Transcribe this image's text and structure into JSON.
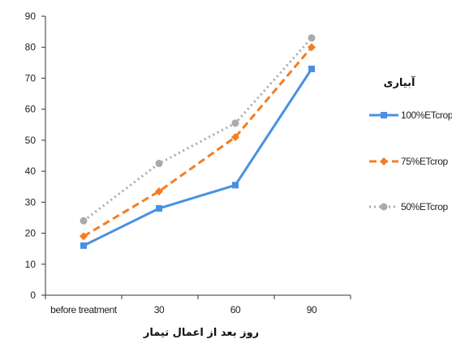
{
  "chart_data": {
    "type": "line",
    "categories": [
      "before treatment",
      "30",
      "60",
      "90"
    ],
    "ylim": [
      0,
      90
    ],
    "yticks": [
      0,
      10,
      20,
      30,
      40,
      50,
      60,
      70,
      80,
      90
    ],
    "xlabel": "روز بعد از اعمال تیمار",
    "ylabel": "",
    "grid": false,
    "legend_title": "آبیاری",
    "legend_position": "right",
    "series": [
      {
        "name": "100%ETcrop",
        "values": [
          16,
          28,
          35.5,
          73
        ],
        "color": "#4a90e2",
        "marker": "square",
        "dash": "solid"
      },
      {
        "name": "75%ETcrop",
        "values": [
          19,
          33.5,
          51,
          80
        ],
        "color": "#f57c22",
        "marker": "diamond",
        "dash": "dashed"
      },
      {
        "name": "50%ETcrop",
        "values": [
          24,
          42.5,
          55.5,
          83
        ],
        "color": "#aaaaaa",
        "marker": "circle",
        "dash": "dotted"
      }
    ]
  }
}
